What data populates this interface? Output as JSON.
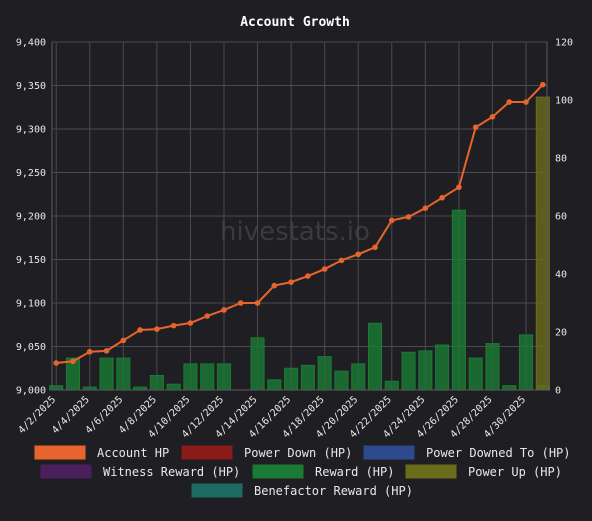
{
  "watermark": "hivestats.io",
  "chart_data": {
    "type": "bar",
    "title": "Account Growth",
    "x_tick_labels": [
      "4/2/2025",
      "4/4/2025",
      "4/6/2025",
      "4/8/2025",
      "4/10/2025",
      "4/12/2025",
      "4/14/2025",
      "4/16/2025",
      "4/18/2025",
      "4/20/2025",
      "4/22/2025",
      "4/24/2025",
      "4/26/2025",
      "4/28/2025",
      "4/30/2025"
    ],
    "y_left": {
      "min": 9000,
      "max": 9400,
      "ticks": [
        9000,
        9050,
        9100,
        9150,
        9200,
        9250,
        9300,
        9350,
        9400
      ],
      "tick_labels": [
        "9,000",
        "9,050",
        "9,100",
        "9,150",
        "9,200",
        "9,250",
        "9,300",
        "9,350",
        "9,400"
      ]
    },
    "y_right": {
      "min": 0,
      "max": 120,
      "ticks": [
        0,
        20,
        40,
        60,
        80,
        100,
        120
      ],
      "tick_labels": [
        "0",
        "20",
        "40",
        "60",
        "80",
        "100",
        "120"
      ]
    },
    "grid": true,
    "legend_position": "bottom",
    "series": [
      {
        "name": "Account HP",
        "type": "line",
        "axis": "left",
        "color": "#e8642e",
        "values": [
          9031,
          9033,
          9044,
          9045,
          9057,
          9069,
          9070,
          9074,
          9077,
          9085,
          9092,
          9100,
          9100,
          9120,
          9124,
          9131,
          9139,
          9149,
          9156,
          9164,
          9195,
          9199,
          9209,
          9221,
          9233,
          9302,
          9314,
          9331,
          9331,
          9351
        ]
      },
      {
        "name": "Power Down (HP)",
        "type": "bar",
        "axis": "right",
        "color": "#8b1a1a",
        "values": []
      },
      {
        "name": "Power Downed To (HP)",
        "type": "bar",
        "axis": "right",
        "color": "#2c4a8c",
        "values": []
      },
      {
        "name": "Witness Reward (HP)",
        "type": "bar",
        "axis": "right",
        "color": "#4a1f5c",
        "values": []
      },
      {
        "name": "Reward (HP)",
        "type": "bar",
        "axis": "right",
        "color": "#1b7a35",
        "values": [
          1.5,
          11,
          1,
          11,
          11,
          1,
          5,
          2,
          9,
          9,
          9,
          0,
          18,
          3.5,
          7.5,
          8.5,
          11.5,
          6.5,
          9,
          23,
          3,
          13,
          13.5,
          15.5,
          62,
          11,
          16,
          1.5,
          19,
          1.5
        ]
      },
      {
        "name": "Power Up (HP)",
        "type": "bar",
        "axis": "right",
        "color": "#6b6b1a",
        "values": [
          0,
          0,
          0,
          0,
          0,
          0,
          0,
          0,
          0,
          0,
          0,
          0,
          0,
          0,
          0,
          0,
          0,
          0,
          0,
          0,
          0,
          0,
          0,
          0,
          0,
          0,
          0,
          0,
          0,
          101
        ]
      },
      {
        "name": "Benefactor Reward (HP)",
        "type": "bar",
        "axis": "right",
        "color": "#1f6b63",
        "values": []
      }
    ]
  }
}
